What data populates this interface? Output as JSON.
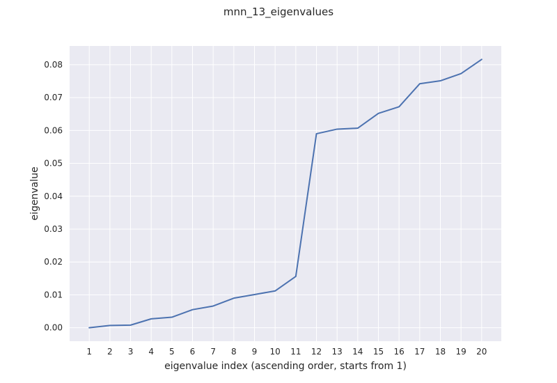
{
  "chart_data": {
    "type": "line",
    "title": "mnn_13_eigenvalues",
    "xlabel": "eigenvalue index (ascending order, starts from 1)",
    "ylabel": "eigenvalue",
    "x": [
      1,
      2,
      3,
      4,
      5,
      6,
      7,
      8,
      9,
      10,
      11,
      12,
      13,
      14,
      15,
      16,
      17,
      18,
      19,
      20
    ],
    "series": [
      {
        "values": [
          0.0,
          0.0007,
          0.0008,
          0.0027,
          0.0032,
          0.0055,
          0.0066,
          0.009,
          0.0101,
          0.0112,
          0.0156,
          0.059,
          0.0604,
          0.0607,
          0.0652,
          0.0672,
          0.0742,
          0.0751,
          0.0773,
          0.0816
        ],
        "color": "#4c72b0"
      }
    ],
    "xticks": [
      "1",
      "2",
      "3",
      "4",
      "5",
      "6",
      "7",
      "8",
      "9",
      "10",
      "11",
      "12",
      "13",
      "14",
      "15",
      "16",
      "17",
      "18",
      "19",
      "20"
    ],
    "yticks": [
      0.0,
      0.01,
      0.02,
      0.03,
      0.04,
      0.05,
      0.06,
      0.07,
      0.08
    ],
    "ytick_labels": [
      "0.00",
      "0.01",
      "0.02",
      "0.03",
      "0.04",
      "0.05",
      "0.06",
      "0.07",
      "0.08"
    ],
    "xlim": [
      0.05,
      20.95
    ],
    "ylim": [
      -0.0041,
      0.0857
    ],
    "grid": true,
    "background_color": "#eaeaf2",
    "grid_color": "#ffffff"
  }
}
